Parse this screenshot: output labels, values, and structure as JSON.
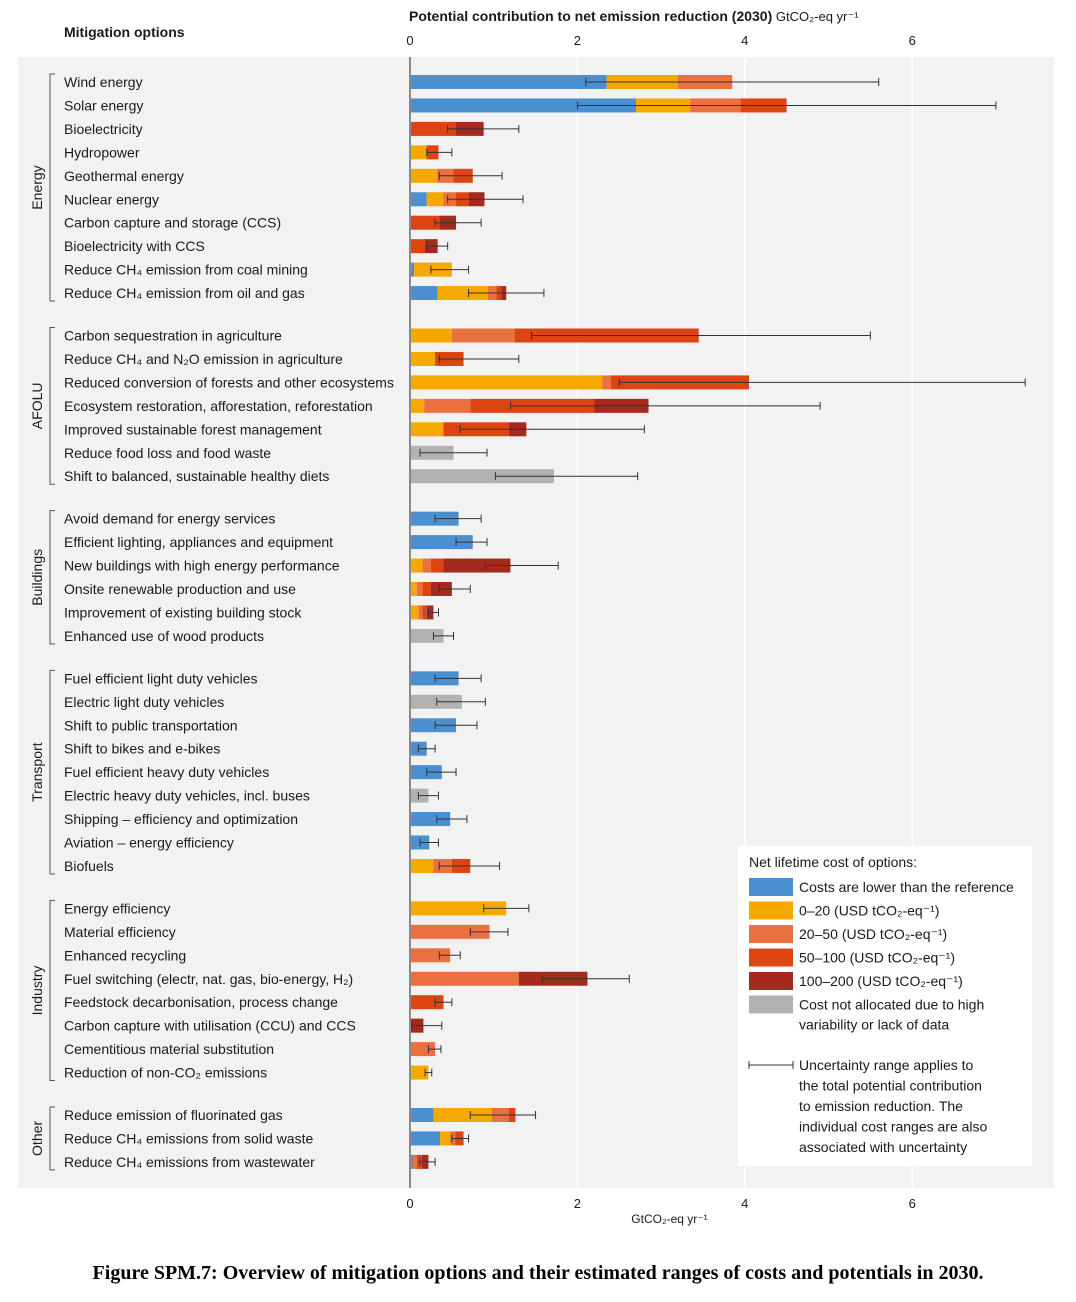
{
  "chart_data": {
    "type": "bar",
    "orientation": "horizontal-stacked",
    "title": "Potential contribution to net emission reduction (2030)",
    "title_unit": "GtCO₂-eq yr⁻¹",
    "row_header": "Mitigation options",
    "xlabel": "GtCO₂-eq yr⁻¹",
    "xlim": [
      0,
      7.4
    ],
    "xticks": [
      0,
      2,
      4,
      6
    ],
    "grid": "vertical",
    "legend_position": "bottom-right",
    "legend_title": "Net lifetime cost of options:",
    "cost_categories": [
      {
        "key": "lower",
        "label": "Costs are lower than the reference",
        "color": "#4a8fcf"
      },
      {
        "key": "c0_20",
        "label": "0–20 (USD tCO₂-eq⁻¹)",
        "color": "#f5a800"
      },
      {
        "key": "c20_50",
        "label": "20–50 (USD tCO₂-eq⁻¹)",
        "color": "#ea7040"
      },
      {
        "key": "c50_100",
        "label": "50–100 (USD tCO₂-eq⁻¹)",
        "color": "#dc4412"
      },
      {
        "key": "c100_200",
        "label": "100–200 (USD tCO₂-eq⁻¹)",
        "color": "#a32a1c"
      },
      {
        "key": "na",
        "label": "Cost not allocated due to high variability or lack of data",
        "color": "#b2b2b2"
      }
    ],
    "uncertainty_note": "Uncertainty range applies to the total potential contribution to emission reduction. The individual cost ranges are also associated with uncertainty",
    "sectors": [
      {
        "name": "Energy",
        "options": [
          {
            "label": "Wind energy",
            "segments": [
              [
                "lower",
                2.35
              ],
              [
                "c0_20",
                0.85
              ],
              [
                "c20_50",
                0.65
              ]
            ],
            "err": [
              2.1,
              5.6
            ]
          },
          {
            "label": "Solar energy",
            "segments": [
              [
                "lower",
                2.7
              ],
              [
                "c0_20",
                0.65
              ],
              [
                "c20_50",
                0.6
              ],
              [
                "c50_100",
                0.55
              ]
            ],
            "err": [
              2.0,
              7.0
            ]
          },
          {
            "label": "Bioelectricity",
            "segments": [
              [
                "c50_100",
                0.55
              ],
              [
                "c100_200",
                0.33
              ]
            ],
            "err": [
              0.45,
              1.3
            ]
          },
          {
            "label": "Hydropower",
            "segments": [
              [
                "c0_20",
                0.2
              ],
              [
                "c50_100",
                0.14
              ]
            ],
            "err": [
              0.2,
              0.5
            ]
          },
          {
            "label": "Geothermal energy",
            "segments": [
              [
                "c0_20",
                0.32
              ],
              [
                "c20_50",
                0.2
              ],
              [
                "c50_100",
                0.23
              ]
            ],
            "err": [
              0.35,
              1.1
            ]
          },
          {
            "label": "Nuclear energy",
            "segments": [
              [
                "lower",
                0.2
              ],
              [
                "c0_20",
                0.2
              ],
              [
                "c20_50",
                0.15
              ],
              [
                "c50_100",
                0.15
              ],
              [
                "c100_200",
                0.19
              ]
            ],
            "err": [
              0.45,
              1.35
            ]
          },
          {
            "label": "Carbon capture and storage (CCS)",
            "segments": [
              [
                "c50_100",
                0.35
              ],
              [
                "c100_200",
                0.2
              ]
            ],
            "err": [
              0.3,
              0.85
            ]
          },
          {
            "label": "Bioelectricity with CCS",
            "segments": [
              [
                "c50_100",
                0.18
              ],
              [
                "c100_200",
                0.15
              ]
            ],
            "err": [
              0.2,
              0.45
            ]
          },
          {
            "label": "Reduce CH₄ emission from coal mining",
            "segments": [
              [
                "lower",
                0.05
              ],
              [
                "c0_20",
                0.45
              ]
            ],
            "err": [
              0.25,
              0.7
            ]
          },
          {
            "label": "Reduce CH₄ emission from oil and gas",
            "segments": [
              [
                "lower",
                0.33
              ],
              [
                "c0_20",
                0.6
              ],
              [
                "c20_50",
                0.1
              ],
              [
                "c50_100",
                0.06
              ],
              [
                "c100_200",
                0.06
              ]
            ],
            "err": [
              0.7,
              1.6
            ]
          }
        ]
      },
      {
        "name": "AFOLU",
        "options": [
          {
            "label": "Carbon sequestration in agriculture",
            "segments": [
              [
                "c0_20",
                0.5
              ],
              [
                "c20_50",
                0.75
              ],
              [
                "c50_100",
                2.2
              ]
            ],
            "err": [
              1.45,
              5.5
            ]
          },
          {
            "label": "Reduce CH₄ and N₂O emission in agriculture",
            "segments": [
              [
                "c0_20",
                0.3
              ],
              [
                "c50_100",
                0.34
              ]
            ],
            "err": [
              0.35,
              1.3
            ]
          },
          {
            "label": "Reduced conversion of forests and other ecosystems",
            "segments": [
              [
                "c0_20",
                2.3
              ],
              [
                "c20_50",
                0.1
              ],
              [
                "c50_100",
                1.65
              ]
            ],
            "err": [
              2.5,
              7.35
            ]
          },
          {
            "label": "Ecosystem restoration, afforestation, reforestation",
            "segments": [
              [
                "c0_20",
                0.17
              ],
              [
                "c20_50",
                0.55
              ],
              [
                "c50_100",
                1.48
              ],
              [
                "c100_200",
                0.65
              ]
            ],
            "err": [
              1.2,
              4.9
            ]
          },
          {
            "label": "Improved sustainable forest management",
            "segments": [
              [
                "c0_20",
                0.4
              ],
              [
                "c50_100",
                0.78
              ],
              [
                "c100_200",
                0.21
              ]
            ],
            "err": [
              0.6,
              2.8
            ]
          },
          {
            "label": "Reduce food loss and food waste",
            "segments": [
              [
                "na",
                0.52
              ]
            ],
            "err": [
              0.12,
              0.92
            ]
          },
          {
            "label": "Shift to balanced, sustainable healthy diets",
            "segments": [
              [
                "na",
                1.72
              ]
            ],
            "err": [
              1.02,
              2.72
            ]
          }
        ]
      },
      {
        "name": "Buildings",
        "options": [
          {
            "label": "Avoid demand for energy services",
            "segments": [
              [
                "lower",
                0.58
              ]
            ],
            "err": [
              0.3,
              0.85
            ]
          },
          {
            "label": "Efficient lighting, appliances and equipment",
            "segments": [
              [
                "lower",
                0.75
              ]
            ],
            "err": [
              0.55,
              0.92
            ]
          },
          {
            "label": "New buildings with high energy performance",
            "segments": [
              [
                "c0_20",
                0.15
              ],
              [
                "c20_50",
                0.1
              ],
              [
                "c50_100",
                0.15
              ],
              [
                "c100_200",
                0.8
              ]
            ],
            "err": [
              0.9,
              1.77
            ]
          },
          {
            "label": "Onsite renewable production and use",
            "segments": [
              [
                "c0_20",
                0.08
              ],
              [
                "c20_50",
                0.07
              ],
              [
                "c50_100",
                0.1
              ],
              [
                "c100_200",
                0.25
              ]
            ],
            "err": [
              0.35,
              0.72
            ]
          },
          {
            "label": "Improvement of existing building stock",
            "segments": [
              [
                "c0_20",
                0.1
              ],
              [
                "c20_50",
                0.05
              ],
              [
                "c50_100",
                0.05
              ],
              [
                "c100_200",
                0.08
              ]
            ],
            "err": [
              0.22,
              0.34
            ]
          },
          {
            "label": "Enhanced use of wood products",
            "segments": [
              [
                "na",
                0.4
              ]
            ],
            "err": [
              0.28,
              0.52
            ]
          }
        ]
      },
      {
        "name": "Transport",
        "options": [
          {
            "label": "Fuel efficient light duty vehicles",
            "segments": [
              [
                "lower",
                0.58
              ]
            ],
            "err": [
              0.3,
              0.85
            ]
          },
          {
            "label": "Electric light duty vehicles",
            "segments": [
              [
                "na",
                0.62
              ]
            ],
            "err": [
              0.32,
              0.9
            ]
          },
          {
            "label": "Shift to public transportation",
            "segments": [
              [
                "lower",
                0.55
              ]
            ],
            "err": [
              0.3,
              0.8
            ]
          },
          {
            "label": "Shift to bikes and e-bikes",
            "segments": [
              [
                "lower",
                0.2
              ]
            ],
            "err": [
              0.1,
              0.3
            ]
          },
          {
            "label": "Fuel efficient heavy duty vehicles",
            "segments": [
              [
                "lower",
                0.38
              ]
            ],
            "err": [
              0.2,
              0.55
            ]
          },
          {
            "label": "Electric heavy duty vehicles, incl. buses",
            "segments": [
              [
                "na",
                0.22
              ]
            ],
            "err": [
              0.1,
              0.34
            ]
          },
          {
            "label": "Shipping – efficiency and optimization",
            "segments": [
              [
                "lower",
                0.48
              ]
            ],
            "err": [
              0.32,
              0.68
            ]
          },
          {
            "label": "Aviation – energy efficiency",
            "segments": [
              [
                "lower",
                0.23
              ]
            ],
            "err": [
              0.12,
              0.34
            ]
          },
          {
            "label": "Biofuels",
            "segments": [
              [
                "c0_20",
                0.28
              ],
              [
                "c20_50",
                0.22
              ],
              [
                "c50_100",
                0.22
              ]
            ],
            "err": [
              0.35,
              1.07
            ]
          }
        ]
      },
      {
        "name": "Industry",
        "options": [
          {
            "label": "Energy efficiency",
            "segments": [
              [
                "c0_20",
                1.15
              ]
            ],
            "err": [
              0.88,
              1.42
            ]
          },
          {
            "label": "Material efficiency",
            "segments": [
              [
                "c20_50",
                0.95
              ]
            ],
            "err": [
              0.72,
              1.17
            ]
          },
          {
            "label": "Enhanced recycling",
            "segments": [
              [
                "c20_50",
                0.48
              ]
            ],
            "err": [
              0.35,
              0.6
            ]
          },
          {
            "label": "Fuel switching (electr, nat. gas, bio-energy, H₂)",
            "segments": [
              [
                "c20_50",
                1.3
              ],
              [
                "c100_200",
                0.82
              ]
            ],
            "err": [
              1.58,
              2.62
            ]
          },
          {
            "label": "Feedstock decarbonisation, process change",
            "segments": [
              [
                "c50_100",
                0.4
              ]
            ],
            "err": [
              0.3,
              0.5
            ]
          },
          {
            "label": "Carbon capture with utilisation (CCU) and CCS",
            "segments": [
              [
                "c100_200",
                0.16
              ]
            ],
            "err": [
              0.02,
              0.38
            ]
          },
          {
            "label": "Cementitious material substitution",
            "segments": [
              [
                "c20_50",
                0.3
              ]
            ],
            "err": [
              0.22,
              0.37
            ]
          },
          {
            "label": "Reduction of non-CO₂ emissions",
            "segments": [
              [
                "c0_20",
                0.22
              ]
            ],
            "err": [
              0.18,
              0.26
            ]
          }
        ]
      },
      {
        "name": "Other",
        "options": [
          {
            "label": "Reduce emission of fluorinated gas",
            "segments": [
              [
                "lower",
                0.28
              ],
              [
                "c0_20",
                0.7
              ],
              [
                "c20_50",
                0.2
              ],
              [
                "c50_100",
                0.08
              ]
            ],
            "err": [
              0.72,
              1.5
            ]
          },
          {
            "label": "Reduce CH₄ emissions from solid waste",
            "segments": [
              [
                "lower",
                0.36
              ],
              [
                "c0_20",
                0.12
              ],
              [
                "c20_50",
                0.06
              ],
              [
                "c50_100",
                0.1
              ]
            ],
            "err": [
              0.5,
              0.7
            ]
          },
          {
            "label": "Reduce CH₄ emissions from wastewater",
            "segments": [
              [
                "lower",
                0.03
              ],
              [
                "c20_50",
                0.05
              ],
              [
                "c50_100",
                0.06
              ],
              [
                "c100_200",
                0.08
              ]
            ],
            "err": [
              0.12,
              0.3
            ]
          }
        ]
      }
    ]
  },
  "caption": "Figure SPM.7: Overview of mitigation options and their estimated ranges of costs and potentials in 2030."
}
